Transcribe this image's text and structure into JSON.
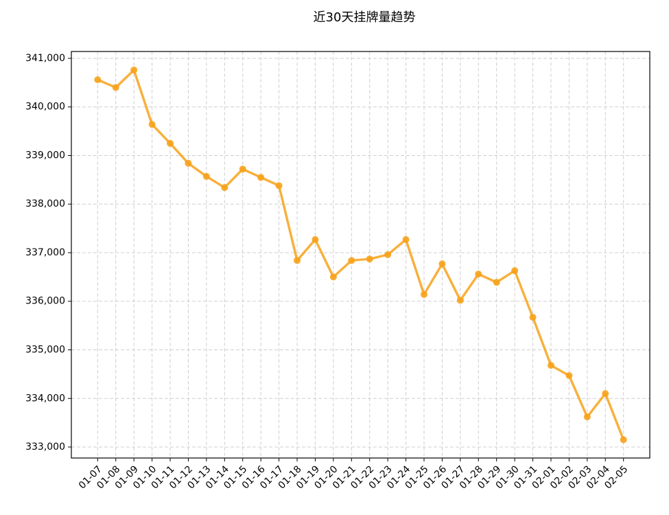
{
  "chart_data": {
    "type": "line",
    "title": "近30天挂牌量趋势",
    "categories": [
      "01-07",
      "01-08",
      "01-09",
      "01-10",
      "01-11",
      "01-12",
      "01-13",
      "01-14",
      "01-15",
      "01-16",
      "01-17",
      "01-18",
      "01-19",
      "01-20",
      "01-21",
      "01-22",
      "01-23",
      "01-24",
      "01-25",
      "01-26",
      "01-27",
      "01-28",
      "01-29",
      "01-30",
      "01-31",
      "02-01",
      "02-02",
      "02-03",
      "02-04",
      "02-05"
    ],
    "series": [
      {
        "color": "#f7a21b",
        "values": [
          340560,
          340400,
          340760,
          339640,
          339250,
          338840,
          338570,
          338340,
          338720,
          338550,
          338380,
          336840,
          337270,
          336500,
          336840,
          336870,
          336960,
          337270,
          336140,
          336770,
          336020,
          336560,
          336390,
          336630,
          335670,
          334680,
          334470,
          333620,
          334100,
          333150
        ]
      }
    ],
    "ylim": [
      332774,
      341141
    ],
    "yticks": [
      {
        "value": 333000,
        "label": "333,000"
      },
      {
        "value": 334000,
        "label": "334,000"
      },
      {
        "value": 335000,
        "label": "335,000"
      },
      {
        "value": 336000,
        "label": "336,000"
      },
      {
        "value": 337000,
        "label": "337,000"
      },
      {
        "value": 338000,
        "label": "338,000"
      },
      {
        "value": 339000,
        "label": "339,000"
      },
      {
        "value": 340000,
        "label": "340,000"
      },
      {
        "value": 341000,
        "label": "341,000"
      }
    ],
    "grid": true
  }
}
